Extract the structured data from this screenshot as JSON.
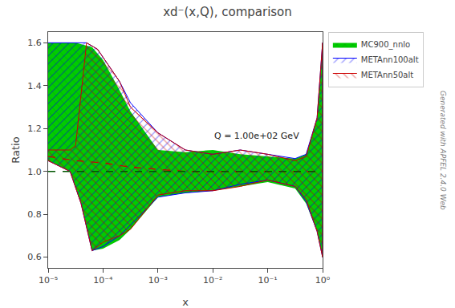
{
  "chart_data": {
    "type": "area",
    "title": "xd⁻(x,Q), comparison",
    "x_label": "x",
    "y_label": "Ratio",
    "annotations": [
      "Q = 1.00e+02 GeV",
      "Generated with APFEL 2.4.0 Web"
    ],
    "log": "x",
    "grid": false,
    "legend": "upper right",
    "xlim": [
      1e-05,
      1.0
    ],
    "xticks": [
      {
        "value": 1e-05,
        "label": "10⁻⁵"
      },
      {
        "value": 0.0001,
        "label": "10⁻⁴"
      },
      {
        "value": 0.001,
        "label": "10⁻³"
      },
      {
        "value": 0.01,
        "label": "10⁻²"
      },
      {
        "value": 0.1,
        "label": "10⁻¹"
      },
      {
        "value": 1.0,
        "label": "10⁰"
      }
    ],
    "ylim": [
      0.55,
      1.65
    ],
    "yticks": [
      0.6,
      0.8,
      {
        "value": 1.0,
        "label": "1.0"
      },
      1.2,
      1.4,
      1.6
    ],
    "series": [
      {
        "name": "MC900_nnlo",
        "type": "band",
        "color": "#00cc00",
        "upper": {
          "x": [
            1e-05,
            3.1622776601683795e-05,
            6.309573444801929e-05,
            0.0001,
            0.00019952623149688788,
            0.00031622776601683794,
            0.001,
            0.0031622776601683794,
            0.01,
            0.03162277660168379,
            0.1,
            0.31622776601683794,
            0.5011872336272722,
            0.7943282347242815,
            1.0
          ],
          "values": [
            1.6,
            1.6,
            1.58,
            1.52,
            1.38,
            1.28,
            1.1,
            1.09,
            1.1,
            1.08,
            1.07,
            1.06,
            1.08,
            1.25,
            1.6
          ]
        },
        "lower": {
          "x": [
            1e-05,
            2.51188643150958e-05,
            3.981071705534973e-05,
            6.309573444801929e-05,
            0.0001,
            0.00019952623149688788,
            0.00031622776601683794,
            0.001,
            0.0031622776601683794,
            0.01,
            0.03162277660168379,
            0.1,
            0.31622776601683794,
            0.5011872336272722,
            0.7943282347242815,
            1.0
          ],
          "values": [
            1.05,
            1.0,
            0.85,
            0.63,
            0.64,
            0.68,
            0.73,
            0.88,
            0.9,
            0.91,
            0.93,
            0.95,
            0.92,
            0.85,
            0.72,
            0.6
          ]
        }
      },
      {
        "type": "hline",
        "color": "#005500",
        "line_style": "dashed",
        "values": [
          1.0
        ]
      },
      {
        "name": "METAnn100alt",
        "type": "band",
        "color": "#0000ff",
        "upper": {
          "x": [
            1e-05,
            3.1622776601683795e-05,
            5.011872336272725e-05,
            7.943282347242822e-05,
            0.00019952623149688788,
            0.00031622776601683794,
            0.001,
            0.0031622776601683794,
            0.01,
            0.03162277660168379,
            0.1,
            0.31622776601683794,
            0.5011872336272722,
            0.7943282347242815,
            1.0
          ],
          "values": [
            1.6,
            1.6,
            1.6,
            1.57,
            1.42,
            1.32,
            1.18,
            1.1,
            1.08,
            1.1,
            1.08,
            1.06,
            1.08,
            1.25,
            1.6
          ]
        },
        "lower": {
          "x": [
            1e-05,
            2.51188643150958e-05,
            3.981071705534973e-05,
            6.309573444801929e-05,
            0.0001,
            0.00019952623149688788,
            0.00031622776601683794,
            0.001,
            0.0031622776601683794,
            0.01,
            0.03162277660168379,
            0.1,
            0.31622776601683794,
            0.5011872336272722,
            0.7943282347242815,
            1.0
          ],
          "values": [
            1.05,
            1.0,
            0.85,
            0.63,
            0.65,
            0.7,
            0.75,
            0.88,
            0.9,
            0.91,
            0.94,
            0.96,
            0.93,
            0.86,
            0.72,
            0.6
          ]
        }
      },
      {
        "name": "METAnn50alt",
        "type": "band",
        "color": "#cc0000",
        "upper": {
          "x": [
            1e-05,
            2.51188643150958e-05,
            3.1622776601683795e-05,
            5.011872336272725e-05,
            7.943282347242822e-05,
            0.00019952623149688788,
            0.00031622776601683794,
            0.001,
            0.0031622776601683794,
            0.01,
            0.03162277660168379,
            0.1,
            0.31622776601683794,
            0.5011872336272722,
            0.7943282347242815,
            1.0
          ],
          "values": [
            1.1,
            1.1,
            1.12,
            1.6,
            1.57,
            1.42,
            1.3,
            1.18,
            1.1,
            1.08,
            1.1,
            1.08,
            1.05,
            1.07,
            1.25,
            1.6
          ]
        },
        "lower": {
          "x": [
            1e-05,
            2.51188643150958e-05,
            3.981071705534973e-05,
            6.309573444801929e-05,
            0.0001,
            0.00019952623149688788,
            0.00031622776601683794,
            0.001,
            0.0031622776601683794,
            0.01,
            0.03162277660168379,
            0.1,
            0.31622776601683794,
            0.5011872336272722,
            0.7943282347242815,
            1.0
          ],
          "values": [
            1.05,
            1.0,
            0.85,
            0.63,
            0.67,
            0.7,
            0.73,
            0.89,
            0.91,
            0.91,
            0.93,
            0.96,
            0.93,
            0.87,
            0.72,
            0.6
          ]
        }
      },
      {
        "type": "line",
        "color": "#cc0000",
        "line_style": "dashed",
        "x": [
          1e-05,
          3.1622776601683795e-05,
          0.0001,
          0.00031622776601683794,
          0.001,
          0.0031622776601683794,
          0.01,
          0.03162277660168379,
          0.1,
          0.31622776601683794,
          1.0
        ],
        "values": [
          1.07,
          1.05,
          1.04,
          1.02,
          1.01,
          1.0,
          1.0,
          1.0,
          1.0,
          1.0,
          1.0
        ]
      }
    ]
  }
}
